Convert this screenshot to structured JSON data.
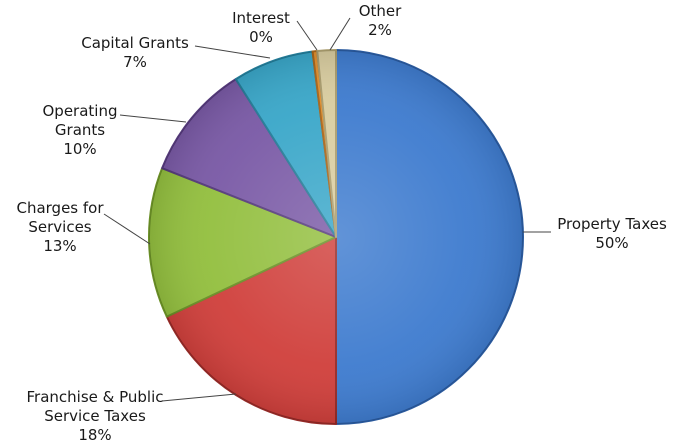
{
  "chart_data": {
    "type": "pie",
    "title": "",
    "slices": [
      {
        "label": "Property Taxes",
        "value": 50,
        "pct_label": "50%",
        "color": "#3f7ccf",
        "edge": "#2a5a9e"
      },
      {
        "label": "Franchise & Public Service Taxes",
        "value": 18,
        "pct_label": "18%",
        "color": "#d0403c",
        "edge": "#952a27"
      },
      {
        "label": "Charges for Services",
        "value": 13,
        "pct_label": "13%",
        "color": "#93bf3f",
        "edge": "#6a8f26"
      },
      {
        "label": "Operating Grants",
        "value": 10,
        "pct_label": "10%",
        "color": "#7a5aa6",
        "edge": "#54397a"
      },
      {
        "label": "Capital Grants",
        "value": 7,
        "pct_label": "7%",
        "color": "#3aa7c9",
        "edge": "#237b97"
      },
      {
        "label": "Interest",
        "value": 0.4,
        "pct_label": "0%",
        "color": "#e2902f",
        "edge": "#a8651a"
      },
      {
        "label": "Other",
        "value": 1.6,
        "pct_label": "2%",
        "color": "#d9cda0",
        "edge": "#a99c6d"
      }
    ]
  }
}
